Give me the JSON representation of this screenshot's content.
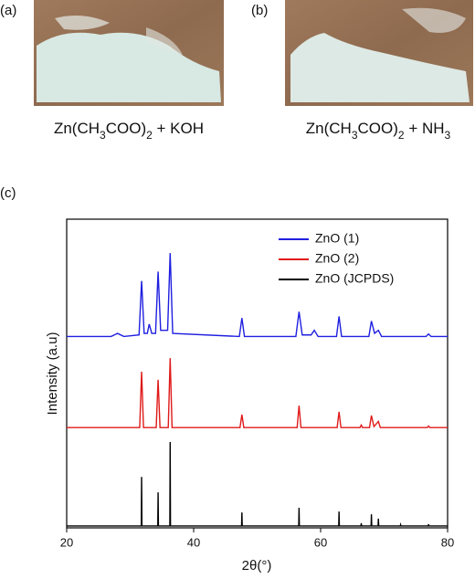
{
  "panels": [
    {
      "label": "(a)",
      "caption": [
        "Zn(CH",
        "3",
        "COO)",
        "2",
        " + KOH"
      ]
    },
    {
      "label": "(b)",
      "caption": [
        "Zn(CH",
        "3",
        "COO)",
        "2",
        " + NH",
        "3"
      ]
    }
  ],
  "chart_data": {
    "type": "line",
    "panel_label": "(c)",
    "x_label": "2θ(°)",
    "y_label": "Intensity (a.u)",
    "xlim": [
      20,
      80
    ],
    "xticks": [
      20,
      40,
      60,
      80
    ],
    "ylim": [
      0,
      100
    ],
    "legend": "upper right",
    "series": [
      {
        "name": "ZnO (1)",
        "color": "#1f1fe0",
        "x": [
          20,
          27,
          28,
          29,
          31.4,
          31.8,
          32.2,
          32.7,
          33.0,
          33.4,
          34.0,
          34.4,
          34.8,
          35.9,
          36.3,
          36.7,
          47.2,
          47.6,
          48.0,
          56.1,
          56.6,
          57.1,
          58.5,
          59.0,
          59.6,
          62.5,
          62.9,
          63.3,
          67.6,
          68.0,
          68.5,
          69.1,
          69.6,
          76.6,
          77.0,
          77.4,
          80
        ],
        "values": [
          62,
          62,
          63,
          62,
          62.5,
          80,
          63,
          63,
          66,
          63,
          63,
          83,
          64,
          64,
          89,
          63,
          62,
          68,
          62,
          62,
          70,
          62.5,
          62.5,
          64,
          62,
          62,
          68.5,
          62,
          62,
          67,
          63,
          64,
          62,
          62,
          62.8,
          62,
          62
        ]
      },
      {
        "name": "ZnO (2)",
        "color": "#e01a1a",
        "x": [
          20,
          31.5,
          31.8,
          32.1,
          34.1,
          34.4,
          34.7,
          36.0,
          36.3,
          36.6,
          47.3,
          47.6,
          47.9,
          56.3,
          56.6,
          56.9,
          62.6,
          62.9,
          63.2,
          66.2,
          66.4,
          66.6,
          67.7,
          68.0,
          68.4,
          69.1,
          69.4,
          76.8,
          77.0,
          77.2,
          80
        ],
        "values": [
          32.5,
          32.5,
          50.6,
          32.5,
          32.5,
          48,
          32.5,
          32.5,
          55,
          32.5,
          32.5,
          36.7,
          32.5,
          32.5,
          39.6,
          32.5,
          32.5,
          37.6,
          32.5,
          32.5,
          33.3,
          32.5,
          32.5,
          36.4,
          32.8,
          34.5,
          32.5,
          32.5,
          33,
          32.5,
          32.5
        ]
      },
      {
        "name": "ZnO (JCPDS)",
        "color": "#000000",
        "x": [
          20,
          31.75,
          31.8,
          31.85,
          34.35,
          34.4,
          34.45,
          36.25,
          36.3,
          36.35,
          47.55,
          47.6,
          47.65,
          56.55,
          56.6,
          56.65,
          62.85,
          62.9,
          62.95,
          66.35,
          66.4,
          66.45,
          67.95,
          68.0,
          68.05,
          69.05,
          69.1,
          69.15,
          72.55,
          72.6,
          72.65,
          76.95,
          77.0,
          77.05,
          80
        ],
        "values": [
          0.6,
          0.6,
          16.5,
          0.6,
          0.6,
          11.5,
          0.6,
          0.6,
          27.8,
          0.6,
          0.6,
          5,
          0.6,
          0.6,
          6.5,
          0.6,
          0.6,
          5.3,
          0.6,
          0.6,
          1.5,
          0.6,
          0.6,
          4.4,
          0.6,
          0.6,
          3,
          0.6,
          0.6,
          1,
          0.6,
          0.6,
          1.2,
          0.6,
          0.6
        ]
      }
    ]
  }
}
